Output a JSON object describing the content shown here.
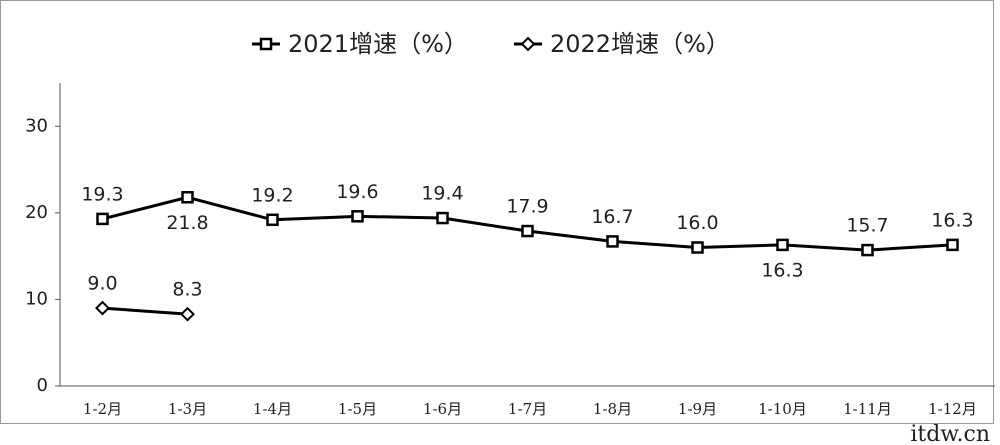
{
  "chart_data": {
    "type": "line",
    "categories": [
      "1-2月",
      "1-3月",
      "1-4月",
      "1-5月",
      "1-6月",
      "1-7月",
      "1-8月",
      "1-9月",
      "1-10月",
      "1-11月",
      "1-12月"
    ],
    "series": [
      {
        "name": "2021增速（%）",
        "color": "#000000",
        "marker": "square",
        "values": [
          19.3,
          21.8,
          19.2,
          19.6,
          19.4,
          17.9,
          16.7,
          16.0,
          16.3,
          15.7,
          16.3
        ],
        "value_labels": [
          "19.3",
          "21.8",
          "19.2",
          "19.6",
          "19.4",
          "17.9",
          "16.7",
          "16.0",
          "16.3",
          "15.7",
          "16.3"
        ]
      },
      {
        "name": "2022增速（%）",
        "color": "#000000",
        "marker": "diamond",
        "values": [
          9.0,
          8.3,
          null,
          null,
          null,
          null,
          null,
          null,
          null,
          null,
          null
        ],
        "value_labels": [
          "9.0",
          "8.3",
          null,
          null,
          null,
          null,
          null,
          null,
          null,
          null,
          null
        ]
      }
    ],
    "ylim": [
      0,
      35
    ],
    "yticks": [
      0,
      10,
      20,
      30
    ],
    "grid": false,
    "legend": "top",
    "watermark": "itdw.cn"
  }
}
